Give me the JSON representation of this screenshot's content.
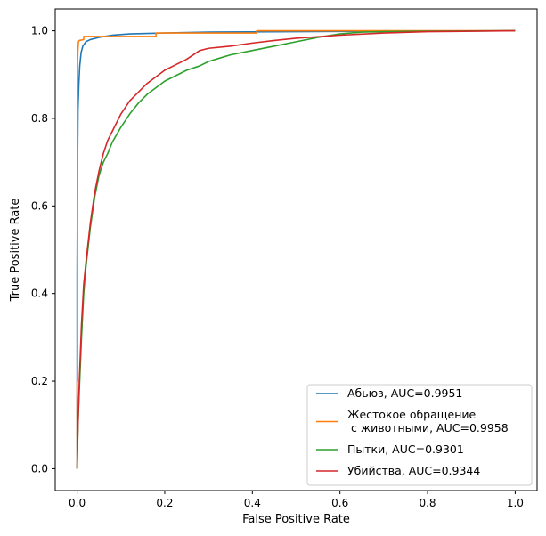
{
  "chart_data": {
    "type": "line",
    "title": "",
    "xlabel": "False Positive Rate",
    "ylabel": "True Positive Rate",
    "xlim": [
      -0.05,
      1.05
    ],
    "ylim": [
      -0.05,
      1.05
    ],
    "xticks": [
      0.0,
      0.2,
      0.4,
      0.6,
      0.8,
      1.0
    ],
    "yticks": [
      0.0,
      0.2,
      0.4,
      0.6,
      0.8,
      1.0
    ],
    "xtick_labels": [
      "0.0",
      "0.2",
      "0.4",
      "0.6",
      "0.8",
      "1.0"
    ],
    "ytick_labels": [
      "0.0",
      "0.2",
      "0.4",
      "0.6",
      "0.8",
      "1.0"
    ],
    "grid": false,
    "legend_position": "bottom-right",
    "series": [
      {
        "name": "Абьюз, AUC=0.9951",
        "color": "#1f77b4",
        "points": [
          [
            0,
            0
          ],
          [
            0,
            0.45
          ],
          [
            0.001,
            0.7
          ],
          [
            0.002,
            0.82
          ],
          [
            0.004,
            0.88
          ],
          [
            0.006,
            0.92
          ],
          [
            0.009,
            0.95
          ],
          [
            0.013,
            0.965
          ],
          [
            0.02,
            0.975
          ],
          [
            0.03,
            0.98
          ],
          [
            0.05,
            0.985
          ],
          [
            0.08,
            0.99
          ],
          [
            0.12,
            0.993
          ],
          [
            0.2,
            0.995
          ],
          [
            0.3,
            0.997
          ],
          [
            0.5,
            0.998
          ],
          [
            0.7,
            0.999
          ],
          [
            1,
            1
          ]
        ]
      },
      {
        "name": "Жестокое обращение\n с животными, AUC=0.9958",
        "color": "#ff7f0e",
        "points": [
          [
            0,
            0
          ],
          [
            0,
            0.2
          ],
          [
            0.001,
            0.2
          ],
          [
            0.001,
            0.93
          ],
          [
            0.002,
            0.96
          ],
          [
            0.003,
            0.975
          ],
          [
            0.005,
            0.978
          ],
          [
            0.015,
            0.98
          ],
          [
            0.015,
            0.987
          ],
          [
            0.18,
            0.987
          ],
          [
            0.18,
            0.995
          ],
          [
            0.41,
            0.995
          ],
          [
            0.41,
            1
          ],
          [
            1,
            1
          ]
        ]
      },
      {
        "name": "Пытки, AUC=0.9301",
        "color": "#2ca02c",
        "points": [
          [
            0,
            0
          ],
          [
            0.002,
            0.1
          ],
          [
            0.005,
            0.18
          ],
          [
            0.01,
            0.3
          ],
          [
            0.015,
            0.4
          ],
          [
            0.02,
            0.46
          ],
          [
            0.03,
            0.55
          ],
          [
            0.04,
            0.62
          ],
          [
            0.05,
            0.67
          ],
          [
            0.06,
            0.7
          ],
          [
            0.07,
            0.72
          ],
          [
            0.08,
            0.745
          ],
          [
            0.1,
            0.78
          ],
          [
            0.12,
            0.81
          ],
          [
            0.14,
            0.835
          ],
          [
            0.16,
            0.855
          ],
          [
            0.18,
            0.87
          ],
          [
            0.2,
            0.885
          ],
          [
            0.22,
            0.895
          ],
          [
            0.25,
            0.91
          ],
          [
            0.28,
            0.92
          ],
          [
            0.3,
            0.93
          ],
          [
            0.35,
            0.945
          ],
          [
            0.4,
            0.955
          ],
          [
            0.45,
            0.965
          ],
          [
            0.5,
            0.975
          ],
          [
            0.55,
            0.985
          ],
          [
            0.6,
            0.993
          ],
          [
            0.65,
            0.997
          ],
          [
            0.7,
            0.998
          ],
          [
            0.8,
            0.999
          ],
          [
            1,
            1
          ]
        ]
      },
      {
        "name": "Убийства, AUC=0.9344",
        "color": "#d62728",
        "points": [
          [
            0,
            0
          ],
          [
            0.002,
            0.1
          ],
          [
            0.005,
            0.2
          ],
          [
            0.01,
            0.33
          ],
          [
            0.015,
            0.42
          ],
          [
            0.02,
            0.47
          ],
          [
            0.03,
            0.56
          ],
          [
            0.04,
            0.63
          ],
          [
            0.05,
            0.68
          ],
          [
            0.06,
            0.72
          ],
          [
            0.07,
            0.75
          ],
          [
            0.08,
            0.77
          ],
          [
            0.1,
            0.81
          ],
          [
            0.12,
            0.84
          ],
          [
            0.14,
            0.86
          ],
          [
            0.16,
            0.88
          ],
          [
            0.18,
            0.895
          ],
          [
            0.2,
            0.91
          ],
          [
            0.22,
            0.92
          ],
          [
            0.25,
            0.935
          ],
          [
            0.28,
            0.955
          ],
          [
            0.3,
            0.96
          ],
          [
            0.35,
            0.965
          ],
          [
            0.4,
            0.972
          ],
          [
            0.45,
            0.978
          ],
          [
            0.5,
            0.983
          ],
          [
            0.6,
            0.99
          ],
          [
            0.7,
            0.995
          ],
          [
            0.8,
            0.998
          ],
          [
            1,
            1
          ]
        ]
      }
    ]
  }
}
